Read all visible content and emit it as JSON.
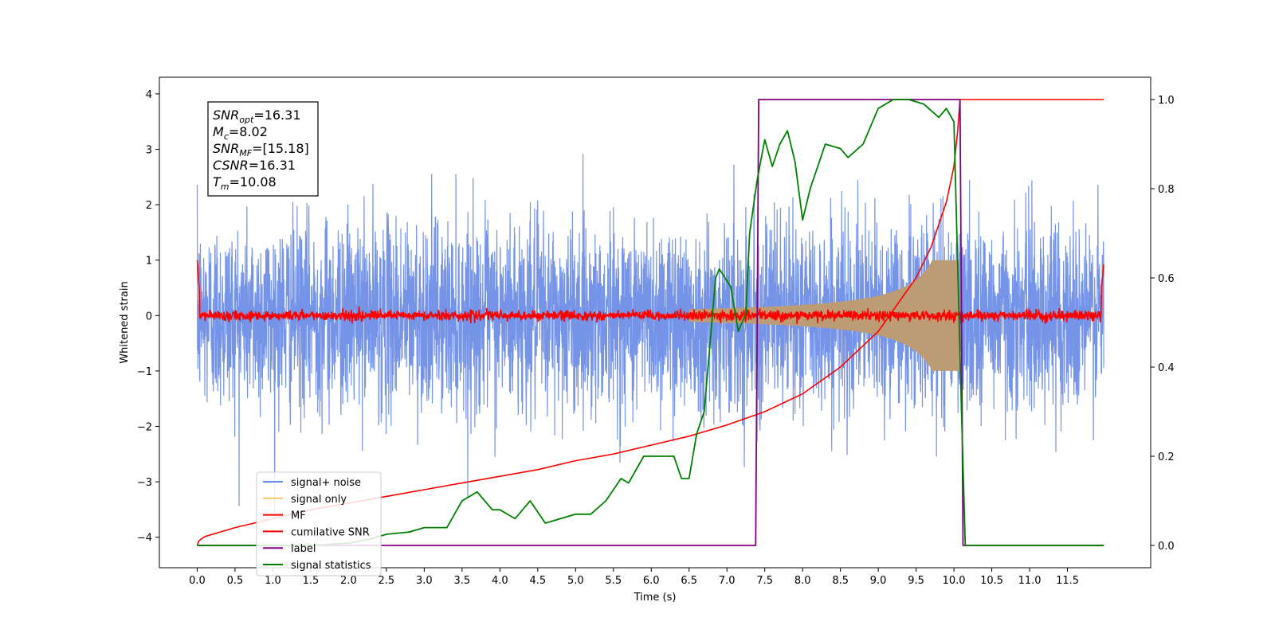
{
  "chart_data": {
    "type": "line",
    "title": "",
    "xlabel": "Time (s)",
    "ylabel": "Whitened strain",
    "xlim": [
      -0.5,
      12.6
    ],
    "ylim": [
      -4.55,
      4.3
    ],
    "y2lim": [
      -0.05,
      1.05
    ],
    "xticks": [
      0.0,
      0.5,
      1.0,
      1.5,
      2.0,
      2.5,
      3.0,
      3.5,
      4.0,
      4.5,
      5.0,
      5.5,
      6.0,
      6.5,
      7.0,
      7.5,
      8.0,
      8.5,
      9.0,
      9.5,
      10.0,
      10.5,
      11.0,
      11.5
    ],
    "xtick_labels": [
      "0.0",
      "0.5",
      "1.0",
      "1.5",
      "2.0",
      "2.5",
      "3.0",
      "3.5",
      "4.0",
      "4.5",
      "5.0",
      "5.5",
      "6.0",
      "6.5",
      "7.0",
      "7.5",
      "8.0",
      "8.5",
      "9.0",
      "9.5",
      "10.0",
      "10.5",
      "11.0",
      "11.5"
    ],
    "yticks": [
      -4,
      -3,
      -2,
      -1,
      0,
      1,
      2,
      3,
      4
    ],
    "ytick_labels": [
      "−4",
      "−3",
      "−2",
      "−1",
      "0",
      "1",
      "2",
      "3",
      "4"
    ],
    "y2ticks": [
      0.0,
      0.2,
      0.4,
      0.6,
      0.8,
      1.0
    ],
    "y2tick_labels": [
      "0.0",
      "0.2",
      "0.4",
      "0.6",
      "0.8",
      "1.0"
    ],
    "grid": false,
    "legend_position": "lower-left",
    "colors": {
      "signal_noise": "#6688e4",
      "signal_only": "#f5c96a",
      "mf": "#ff0000",
      "csnr": "#ff0000",
      "label": "#800080",
      "statistics": "#008000",
      "overlap": "#bc9b75"
    },
    "annotation_lines": [
      {
        "pre": "SNR",
        "sub": "opt",
        "post": "=16.31"
      },
      {
        "pre": "M",
        "sub": "c",
        "post": "=8.02"
      },
      {
        "pre": "SNR",
        "sub": "MF",
        "post": "=[15.18]"
      },
      {
        "pre": "CSNR",
        "sub": "",
        "post": "=16.31"
      },
      {
        "pre": "T",
        "sub": "m",
        "post": "=10.08"
      }
    ],
    "series": [
      {
        "name": "signal+ noise",
        "axis": "left",
        "style": "noise",
        "t_range": [
          0.0,
          11.98
        ],
        "sigma": 0.85
      },
      {
        "name": "signal only",
        "axis": "left",
        "style": "chirp",
        "t_merge": 10.08,
        "amp_at_merge": 1.0
      },
      {
        "name": "MF",
        "axis": "left",
        "style": "mf",
        "t_range": [
          0.0,
          11.98
        ]
      },
      {
        "name": "cumilative SNR",
        "axis": "right",
        "x": [
          0.0,
          0.02,
          0.1,
          0.5,
          1.0,
          1.5,
          2.0,
          2.5,
          3.0,
          3.5,
          4.0,
          4.5,
          5.0,
          5.5,
          6.0,
          6.5,
          7.0,
          7.5,
          8.0,
          8.5,
          9.0,
          9.5,
          9.7,
          9.9,
          10.0,
          10.05,
          10.08,
          10.15,
          11.98
        ],
        "values": [
          0.0,
          0.01,
          0.02,
          0.04,
          0.06,
          0.08,
          0.095,
          0.11,
          0.125,
          0.14,
          0.155,
          0.17,
          0.19,
          0.205,
          0.225,
          0.245,
          0.27,
          0.3,
          0.34,
          0.4,
          0.48,
          0.6,
          0.67,
          0.77,
          0.85,
          0.93,
          1.0,
          1.0,
          1.0
        ]
      },
      {
        "name": "label",
        "axis": "right",
        "x": [
          0.0,
          7.38,
          7.42,
          10.08,
          10.12,
          11.98
        ],
        "values": [
          0.0,
          0.0,
          1.0,
          1.0,
          0.0,
          0.0
        ]
      },
      {
        "name": "signal statistics",
        "axis": "right",
        "x": [
          0.0,
          0.5,
          1.0,
          1.5,
          2.0,
          2.3,
          2.5,
          2.8,
          3.0,
          3.3,
          3.5,
          3.7,
          3.9,
          4.0,
          4.2,
          4.4,
          4.6,
          4.8,
          5.0,
          5.2,
          5.4,
          5.6,
          5.7,
          5.9,
          6.0,
          6.2,
          6.3,
          6.4,
          6.5,
          6.6,
          6.7,
          6.85,
          6.9,
          7.05,
          7.15,
          7.25,
          7.3,
          7.4,
          7.5,
          7.6,
          7.7,
          7.8,
          7.9,
          8.0,
          8.1,
          8.3,
          8.5,
          8.6,
          8.8,
          9.0,
          9.2,
          9.4,
          9.6,
          9.8,
          9.9,
          10.0,
          10.1,
          10.15,
          11.98
        ],
        "values": [
          0.0,
          0.0,
          0.0,
          0.0,
          0.005,
          0.015,
          0.025,
          0.03,
          0.04,
          0.04,
          0.1,
          0.12,
          0.08,
          0.08,
          0.06,
          0.1,
          0.05,
          0.06,
          0.07,
          0.07,
          0.1,
          0.15,
          0.14,
          0.2,
          0.2,
          0.2,
          0.2,
          0.15,
          0.15,
          0.25,
          0.3,
          0.6,
          0.62,
          0.58,
          0.48,
          0.52,
          0.7,
          0.82,
          0.91,
          0.85,
          0.9,
          0.93,
          0.86,
          0.73,
          0.8,
          0.9,
          0.89,
          0.87,
          0.9,
          0.98,
          1.0,
          1.0,
          0.99,
          0.96,
          0.98,
          0.95,
          0.3,
          0.0,
          0.0
        ]
      }
    ]
  }
}
